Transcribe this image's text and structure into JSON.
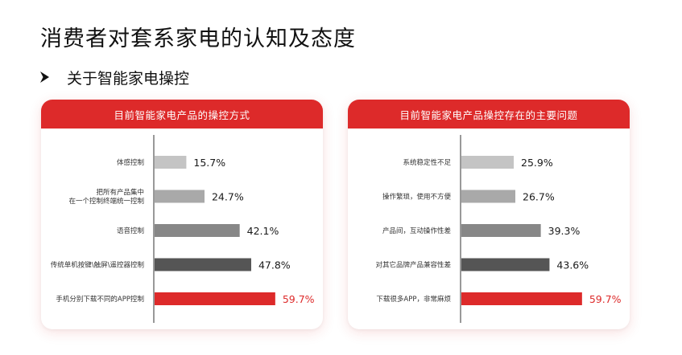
{
  "page": {
    "title": "消费者对套系家电的认知及态度",
    "section_title": "关于智能家电操控"
  },
  "colors": {
    "accent_red": "#dd2a2a",
    "bar_shades": [
      "#c4c4c4",
      "#a9a9a9",
      "#878787",
      "#555555",
      "#dd2a2a"
    ]
  },
  "chart_data": [
    {
      "type": "bar",
      "orientation": "horizontal",
      "title": "目前智能家电产品的操控方式",
      "categories": [
        "体感控制",
        "把所有产品集中\n在一个控制终端统一控制",
        "语音控制",
        "传统单机按键\\触屏\\遥控器控制",
        "手机分别下载不同的APP控制"
      ],
      "values": [
        15.7,
        24.7,
        42.1,
        47.8,
        59.7
      ],
      "labels": [
        "15.7%",
        "24.7%",
        "42.1%",
        "47.8%",
        "59.7%"
      ],
      "highlight_index": 4,
      "xlim": [
        0,
        100
      ],
      "grid": false
    },
    {
      "type": "bar",
      "orientation": "horizontal",
      "title": "目前智能家电产品操控存在的主要问题",
      "categories": [
        "系统稳定性不足",
        "操作繁琐，使用不方便",
        "产品间，互动操作性差",
        "对其它品牌产品兼容性差",
        "下载很多APP，非常麻烦"
      ],
      "values": [
        25.9,
        26.7,
        39.3,
        43.6,
        59.7
      ],
      "labels": [
        "25.9%",
        "26.7%",
        "39.3%",
        "43.6%",
        "59.7%"
      ],
      "highlight_index": 4,
      "xlim": [
        0,
        100
      ],
      "grid": false
    }
  ]
}
